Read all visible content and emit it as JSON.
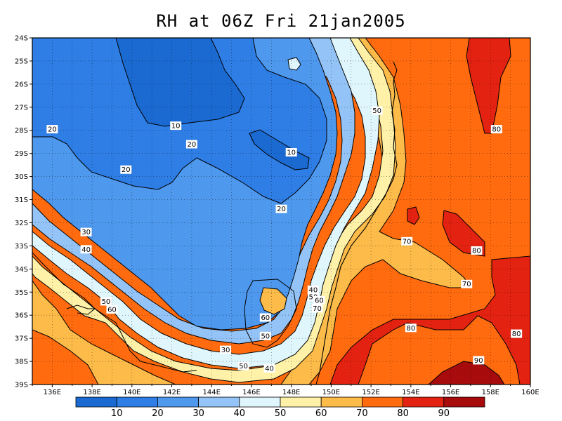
{
  "title": "RH at 06Z Fri 21jan2005",
  "lat_ticks": [
    "24S",
    "25S",
    "26S",
    "27S",
    "28S",
    "29S",
    "30S",
    "31S",
    "32S",
    "33S",
    "34S",
    "35S",
    "36S",
    "37S",
    "38S",
    "39S"
  ],
  "lon_ticks": [
    "136E",
    "138E",
    "140E",
    "142E",
    "144E",
    "146E",
    "148E",
    "150E",
    "152E",
    "154E",
    "156E",
    "158E",
    "160E"
  ],
  "colorbar": {
    "colors": [
      "#1a6ad2",
      "#2e7ee5",
      "#4e98ee",
      "#94c4f7",
      "#dff6fc",
      "#fff2a8",
      "#fdbb4a",
      "#ff6b0e",
      "#e42211",
      "#a80b0b"
    ],
    "labels": [
      "10",
      "20",
      "30",
      "40",
      "50",
      "60",
      "70",
      "80",
      "90"
    ]
  },
  "contour_labels": [
    {
      "text": "10",
      "lon": 142.2,
      "lat": -27.8
    },
    {
      "text": "10",
      "lon": 148.0,
      "lat": -28.95
    },
    {
      "text": "20",
      "lon": 136.0,
      "lat": -27.95
    },
    {
      "text": "20",
      "lon": 143.0,
      "lat": -28.6
    },
    {
      "text": "20",
      "lon": 139.7,
      "lat": -29.7
    },
    {
      "text": "20",
      "lon": 147.5,
      "lat": -31.4
    },
    {
      "text": "30",
      "lon": 137.7,
      "lat": -32.4
    },
    {
      "text": "40",
      "lon": 137.7,
      "lat": -33.15
    },
    {
      "text": "30",
      "lon": 144.7,
      "lat": -37.5
    },
    {
      "text": "40",
      "lon": 146.9,
      "lat": -38.3
    },
    {
      "text": "50",
      "lon": 145.6,
      "lat": -38.2
    },
    {
      "text": "50",
      "lon": 138.7,
      "lat": -35.4
    },
    {
      "text": "60",
      "lon": 139.0,
      "lat": -35.75
    },
    {
      "text": "60",
      "lon": 146.7,
      "lat": -36.1
    },
    {
      "text": "50",
      "lon": 146.7,
      "lat": -36.9
    },
    {
      "text": "40",
      "lon": 149.1,
      "lat": -34.9
    },
    {
      "text": "50",
      "lon": 149.1,
      "lat": -35.2
    },
    {
      "text": "60",
      "lon": 149.4,
      "lat": -35.35
    },
    {
      "text": "70",
      "lon": 149.3,
      "lat": -35.7
    },
    {
      "text": "50",
      "lon": 152.3,
      "lat": -27.15
    },
    {
      "text": "70",
      "lon": 153.8,
      "lat": -32.8
    },
    {
      "text": "70",
      "lon": 156.8,
      "lat": -34.65
    },
    {
      "text": "80",
      "lon": 158.3,
      "lat": -27.95
    },
    {
      "text": "80",
      "lon": 157.3,
      "lat": -33.2
    },
    {
      "text": "80",
      "lon": 154.0,
      "lat": -36.55
    },
    {
      "text": "80",
      "lon": 159.3,
      "lat": -36.8
    },
    {
      "text": "90",
      "lon": 157.4,
      "lat": -37.95
    }
  ]
}
